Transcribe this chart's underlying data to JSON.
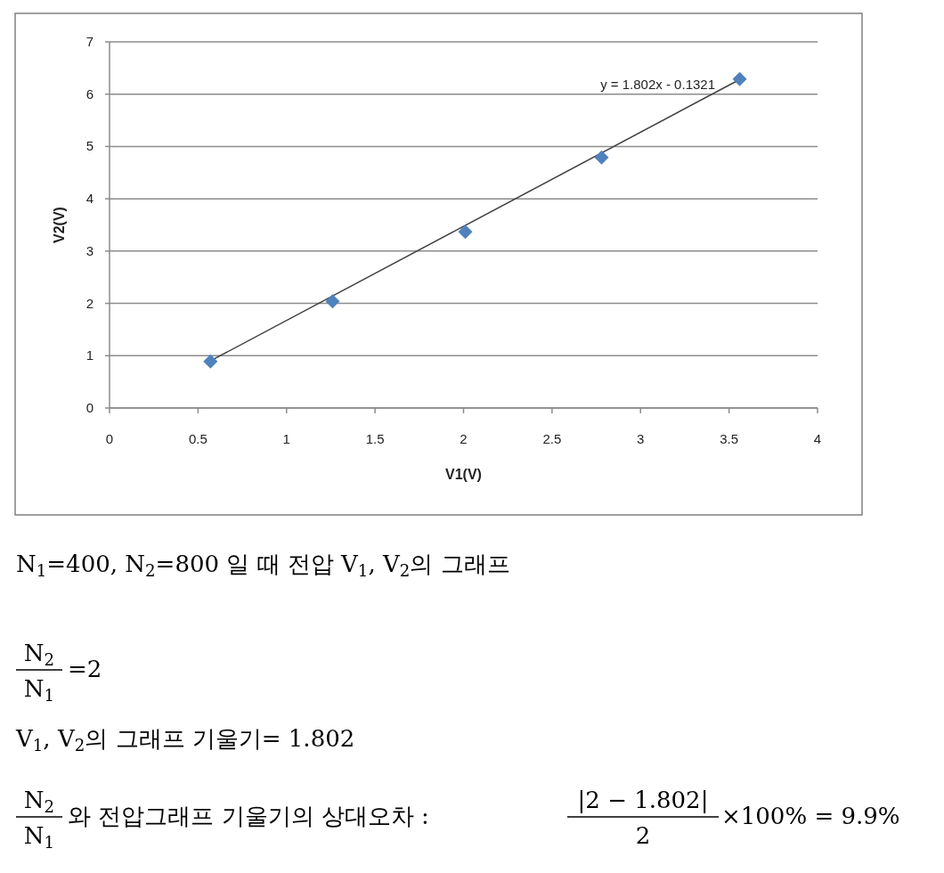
{
  "chart_data": {
    "type": "scatter",
    "xlabel": "V1(V)",
    "ylabel": "V2(V)",
    "xlim": [
      0,
      4
    ],
    "xticks": [
      0,
      0.5,
      1,
      1.5,
      2,
      2.5,
      3,
      3.5,
      4
    ],
    "ylim": [
      0,
      7
    ],
    "yticks": [
      0,
      1,
      2,
      3,
      4,
      5,
      6,
      7
    ],
    "grid": "y",
    "marker": "diamond",
    "series": [
      {
        "color": "#4f81bd",
        "x": [
          0.57,
          1.26,
          2.01,
          2.78,
          3.56
        ],
        "values": [
          0.89,
          2.04,
          3.37,
          4.79,
          6.29
        ]
      },
      {
        "type": "line",
        "color": "#404040",
        "marker": "none",
        "x": [
          0.57,
          3.56
        ],
        "values": [
          0.9,
          6.28
        ]
      }
    ],
    "annotations": [
      "y = 1.802x - 0.1321",
      "N$_{1}$=400,  N$_{2}$=800 일 때 전압 V$_{1}$, V$_{2}$의 그래프",
      "N$_{2}$",
      "N$_{1}$",
      "=2",
      "V$_{1}$, V$_{2}$의 그래프 기울기=  1.802",
      "N$_{2}$",
      "N$_{1}$",
      "와 전압그래프 기울기의 상대오차 :",
      "|2 − 1.802|",
      "2",
      "×100% = 9.9%"
    ]
  }
}
